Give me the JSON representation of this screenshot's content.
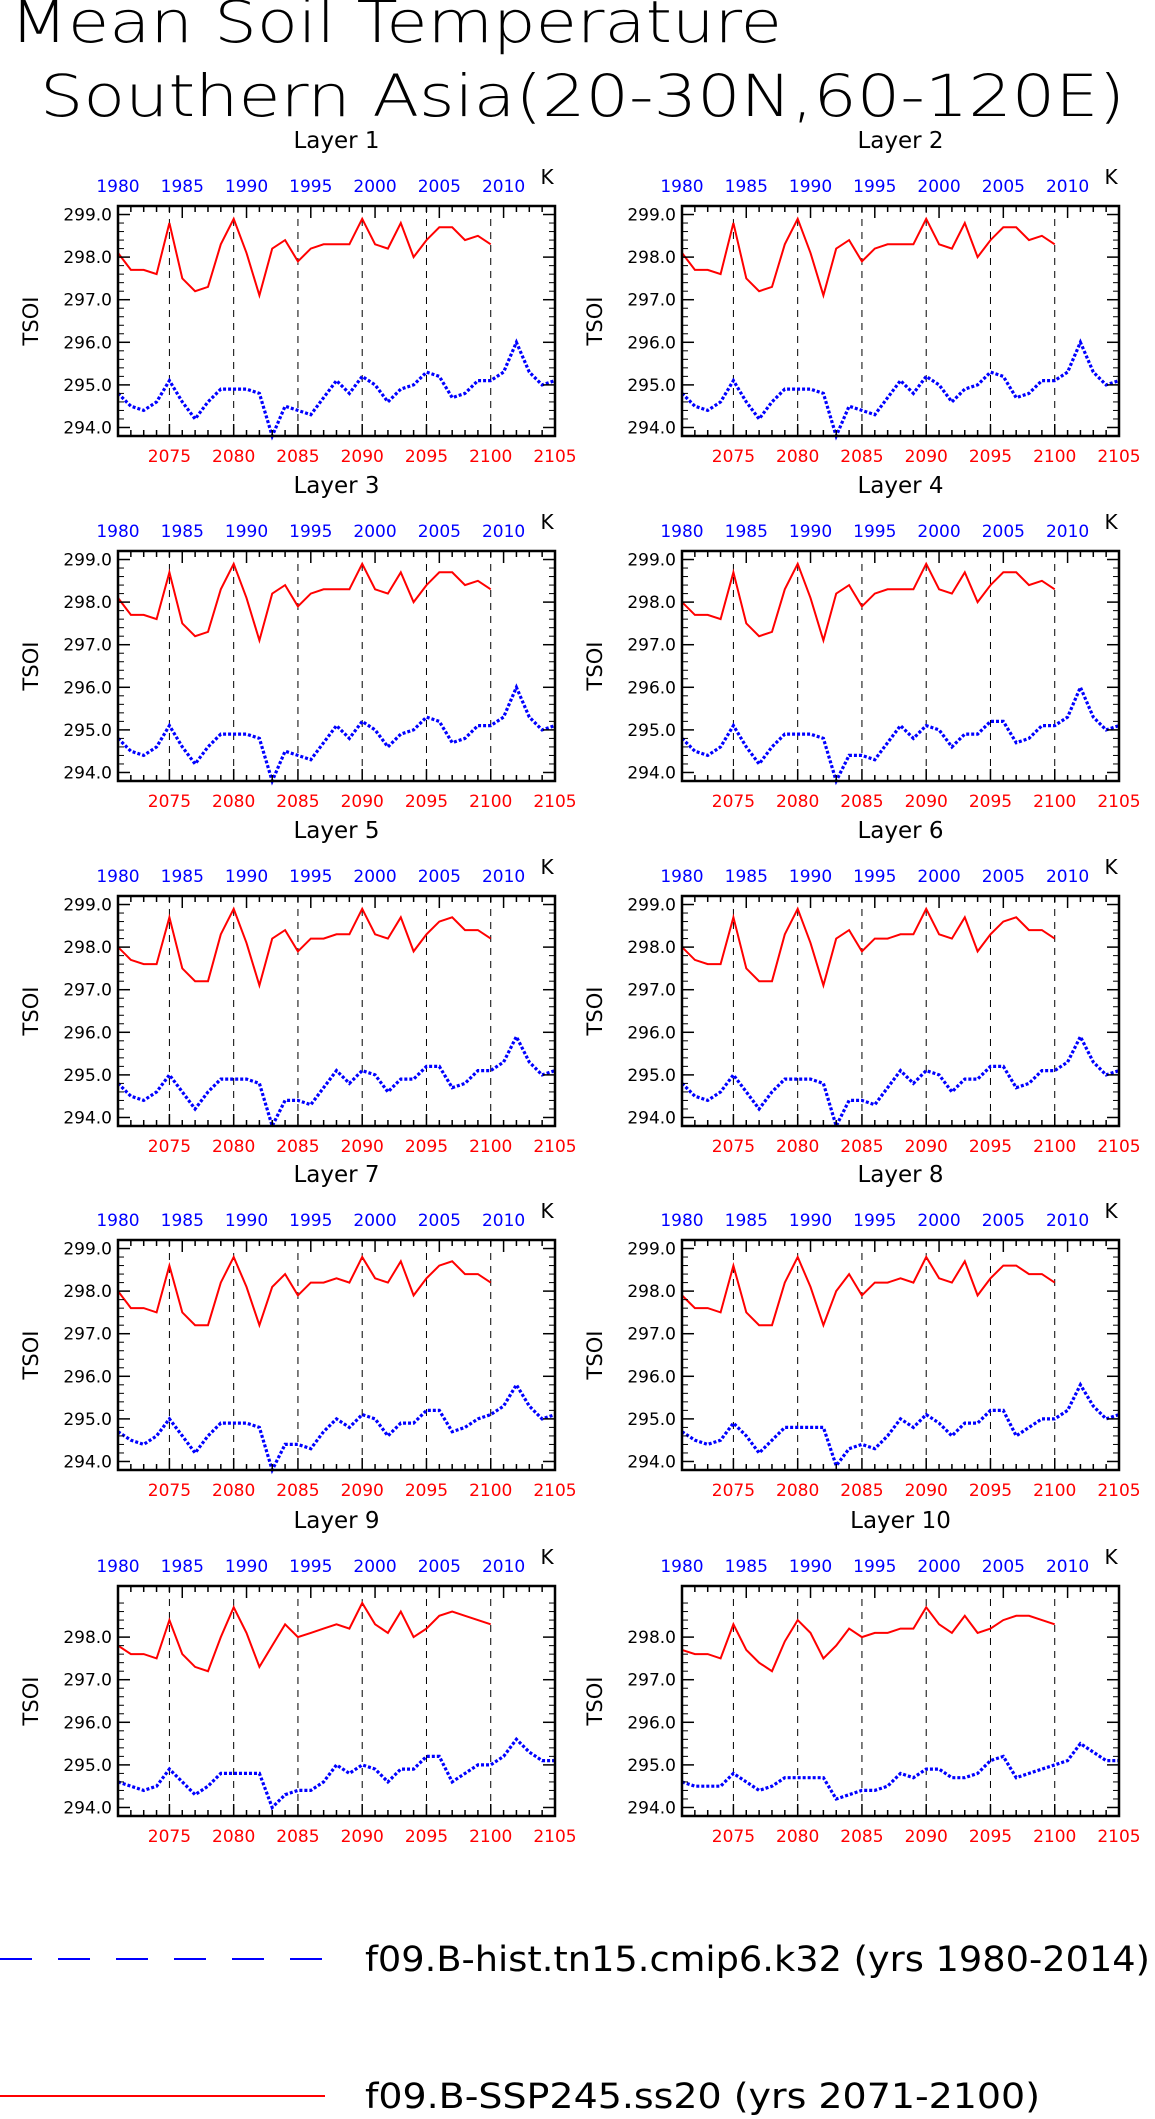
{
  "title_lines": [
    "Mean Soil Temperature",
    "Southern Asia(20-30N,60-120E)"
  ],
  "colors": {
    "hist": "#0000ff",
    "ssp": "#ff0000",
    "axis": "#000000"
  },
  "legend": [
    {
      "label": "f09.B-hist.tn15.cmip6.k32 (yrs 1980-2014)",
      "color": "#0000ff",
      "style": "long-dash"
    },
    {
      "label": "f09.B-SSP245.ss20 (yrs 2071-2100)",
      "color": "#ff0000",
      "style": "solid"
    }
  ],
  "chart_data": {
    "type": "line",
    "ylabel": "TSOI",
    "units": "K",
    "x_bottom": {
      "label": "",
      "ticks": [
        "2075",
        "2080",
        "2085",
        "2090",
        "2095",
        "2100",
        "2105"
      ],
      "range": [
        2071,
        2105
      ]
    },
    "x_top": {
      "label": "",
      "ticks": [
        "1980",
        "1985",
        "1990",
        "1995",
        "2000",
        "2005",
        "2010"
      ],
      "range": [
        1980,
        2014
      ]
    },
    "ylim": [
      293.8,
      299.2
    ],
    "yticks": [
      "294.0",
      "295.0",
      "296.0",
      "297.0",
      "298.0",
      "299.0"
    ],
    "yticks_last_two_layers": [
      "294.0",
      "295.0",
      "296.0",
      "297.0",
      "298.0"
    ],
    "dashed_vlines_at": [
      2075,
      2080,
      2085,
      2090,
      2095,
      2100
    ],
    "panels": [
      {
        "title": "Layer 1",
        "hist": [
          294.8,
          294.5,
          294.4,
          294.6,
          295.1,
          294.6,
          294.2,
          294.6,
          294.9,
          294.9,
          294.9,
          294.8,
          293.8,
          294.5,
          294.4,
          294.3,
          294.7,
          295.1,
          294.8,
          295.2,
          295.0,
          294.6,
          294.9,
          295.0,
          295.3,
          295.2,
          294.7,
          294.8,
          295.1,
          295.1,
          295.3,
          296.0,
          295.3,
          295.0,
          295.1
        ],
        "ssp": [
          298.1,
          297.7,
          297.7,
          297.6,
          298.8,
          297.5,
          297.2,
          297.3,
          298.3,
          298.9,
          298.1,
          297.1,
          298.2,
          298.4,
          297.9,
          298.2,
          298.3,
          298.3,
          298.3,
          298.9,
          298.3,
          298.2,
          298.8,
          298.0,
          298.4,
          298.7,
          298.7,
          298.4,
          298.5,
          298.3
        ]
      },
      {
        "title": "Layer 2",
        "hist": [
          294.8,
          294.5,
          294.4,
          294.6,
          295.1,
          294.6,
          294.2,
          294.6,
          294.9,
          294.9,
          294.9,
          294.8,
          293.8,
          294.5,
          294.4,
          294.3,
          294.7,
          295.1,
          294.8,
          295.2,
          295.0,
          294.6,
          294.9,
          295.0,
          295.3,
          295.2,
          294.7,
          294.8,
          295.1,
          295.1,
          295.3,
          296.0,
          295.3,
          295.0,
          295.1
        ],
        "ssp": [
          298.1,
          297.7,
          297.7,
          297.6,
          298.8,
          297.5,
          297.2,
          297.3,
          298.3,
          298.9,
          298.1,
          297.1,
          298.2,
          298.4,
          297.9,
          298.2,
          298.3,
          298.3,
          298.3,
          298.9,
          298.3,
          298.2,
          298.8,
          298.0,
          298.4,
          298.7,
          298.7,
          298.4,
          298.5,
          298.3
        ]
      },
      {
        "title": "Layer 3",
        "hist": [
          294.8,
          294.5,
          294.4,
          294.6,
          295.1,
          294.6,
          294.2,
          294.6,
          294.9,
          294.9,
          294.9,
          294.8,
          293.8,
          294.5,
          294.4,
          294.3,
          294.7,
          295.1,
          294.8,
          295.2,
          295.0,
          294.6,
          294.9,
          295.0,
          295.3,
          295.2,
          294.7,
          294.8,
          295.1,
          295.1,
          295.3,
          296.0,
          295.3,
          295.0,
          295.1
        ],
        "ssp": [
          298.1,
          297.7,
          297.7,
          297.6,
          298.7,
          297.5,
          297.2,
          297.3,
          298.3,
          298.9,
          298.1,
          297.1,
          298.2,
          298.4,
          297.9,
          298.2,
          298.3,
          298.3,
          298.3,
          298.9,
          298.3,
          298.2,
          298.7,
          298.0,
          298.4,
          298.7,
          298.7,
          298.4,
          298.5,
          298.3
        ]
      },
      {
        "title": "Layer 4",
        "hist": [
          294.8,
          294.5,
          294.4,
          294.6,
          295.1,
          294.6,
          294.2,
          294.6,
          294.9,
          294.9,
          294.9,
          294.8,
          293.8,
          294.4,
          294.4,
          294.3,
          294.7,
          295.1,
          294.8,
          295.1,
          295.0,
          294.6,
          294.9,
          294.9,
          295.2,
          295.2,
          294.7,
          294.8,
          295.1,
          295.1,
          295.3,
          296.0,
          295.3,
          295.0,
          295.1
        ],
        "ssp": [
          298.0,
          297.7,
          297.7,
          297.6,
          298.7,
          297.5,
          297.2,
          297.3,
          298.3,
          298.9,
          298.1,
          297.1,
          298.2,
          298.4,
          297.9,
          298.2,
          298.3,
          298.3,
          298.3,
          298.9,
          298.3,
          298.2,
          298.7,
          298.0,
          298.4,
          298.7,
          298.7,
          298.4,
          298.5,
          298.3
        ]
      },
      {
        "title": "Layer 5",
        "hist": [
          294.8,
          294.5,
          294.4,
          294.6,
          295.0,
          294.6,
          294.2,
          294.6,
          294.9,
          294.9,
          294.9,
          294.8,
          293.8,
          294.4,
          294.4,
          294.3,
          294.7,
          295.1,
          294.8,
          295.1,
          295.0,
          294.6,
          294.9,
          294.9,
          295.2,
          295.2,
          294.7,
          294.8,
          295.1,
          295.1,
          295.3,
          295.9,
          295.3,
          295.0,
          295.1
        ],
        "ssp": [
          298.0,
          297.7,
          297.6,
          297.6,
          298.7,
          297.5,
          297.2,
          297.2,
          298.3,
          298.9,
          298.1,
          297.1,
          298.2,
          298.4,
          297.9,
          298.2,
          298.2,
          298.3,
          298.3,
          298.9,
          298.3,
          298.2,
          298.7,
          297.9,
          298.3,
          298.6,
          298.7,
          298.4,
          298.4,
          298.2
        ]
      },
      {
        "title": "Layer 6",
        "hist": [
          294.8,
          294.5,
          294.4,
          294.6,
          295.0,
          294.6,
          294.2,
          294.6,
          294.9,
          294.9,
          294.9,
          294.8,
          293.8,
          294.4,
          294.4,
          294.3,
          294.7,
          295.1,
          294.8,
          295.1,
          295.0,
          294.6,
          294.9,
          294.9,
          295.2,
          295.2,
          294.7,
          294.8,
          295.1,
          295.1,
          295.3,
          295.9,
          295.3,
          295.0,
          295.1
        ],
        "ssp": [
          298.0,
          297.7,
          297.6,
          297.6,
          298.7,
          297.5,
          297.2,
          297.2,
          298.3,
          298.9,
          298.1,
          297.1,
          298.2,
          298.4,
          297.9,
          298.2,
          298.2,
          298.3,
          298.3,
          298.9,
          298.3,
          298.2,
          298.7,
          297.9,
          298.3,
          298.6,
          298.7,
          298.4,
          298.4,
          298.2
        ]
      },
      {
        "title": "Layer 7",
        "hist": [
          294.7,
          294.5,
          294.4,
          294.6,
          295.0,
          294.6,
          294.2,
          294.6,
          294.9,
          294.9,
          294.9,
          294.8,
          293.8,
          294.4,
          294.4,
          294.3,
          294.7,
          295.0,
          294.8,
          295.1,
          295.0,
          294.6,
          294.9,
          294.9,
          295.2,
          295.2,
          294.7,
          294.8,
          295.0,
          295.1,
          295.3,
          295.8,
          295.3,
          295.0,
          295.1
        ],
        "ssp": [
          298.0,
          297.6,
          297.6,
          297.5,
          298.6,
          297.5,
          297.2,
          297.2,
          298.2,
          298.8,
          298.1,
          297.2,
          298.1,
          298.4,
          297.9,
          298.2,
          298.2,
          298.3,
          298.2,
          298.8,
          298.3,
          298.2,
          298.7,
          297.9,
          298.3,
          298.6,
          298.7,
          298.4,
          298.4,
          298.2
        ]
      },
      {
        "title": "Layer 8",
        "hist": [
          294.7,
          294.5,
          294.4,
          294.5,
          294.9,
          294.6,
          294.2,
          294.5,
          294.8,
          294.8,
          294.8,
          294.8,
          293.9,
          294.3,
          294.4,
          294.3,
          294.6,
          295.0,
          294.8,
          295.1,
          294.9,
          294.6,
          294.9,
          294.9,
          295.2,
          295.2,
          294.6,
          294.8,
          295.0,
          295.0,
          295.2,
          295.8,
          295.3,
          295.0,
          295.1
        ],
        "ssp": [
          297.9,
          297.6,
          297.6,
          297.5,
          298.6,
          297.5,
          297.2,
          297.2,
          298.2,
          298.8,
          298.1,
          297.2,
          298.0,
          298.4,
          297.9,
          298.2,
          298.2,
          298.3,
          298.2,
          298.8,
          298.3,
          298.2,
          298.7,
          297.9,
          298.3,
          298.6,
          298.6,
          298.4,
          298.4,
          298.2
        ]
      },
      {
        "title": "Layer 9",
        "hist": [
          294.6,
          294.5,
          294.4,
          294.5,
          294.9,
          294.6,
          294.3,
          294.5,
          294.8,
          294.8,
          294.8,
          294.8,
          294.0,
          294.3,
          294.4,
          294.4,
          294.6,
          295.0,
          294.8,
          295.0,
          294.9,
          294.6,
          294.9,
          294.9,
          295.2,
          295.2,
          294.6,
          294.8,
          295.0,
          295.0,
          295.2,
          295.6,
          295.3,
          295.1,
          295.1
        ],
        "ssp": [
          297.8,
          297.6,
          297.6,
          297.5,
          298.4,
          297.6,
          297.3,
          297.2,
          298.0,
          298.7,
          298.1,
          297.3,
          297.8,
          298.3,
          298.0,
          298.1,
          298.2,
          298.3,
          298.2,
          298.8,
          298.3,
          298.1,
          298.6,
          298.0,
          298.2,
          298.5,
          298.6,
          298.5,
          298.4,
          298.3
        ]
      },
      {
        "title": "Layer 10",
        "hist": [
          294.6,
          294.5,
          294.5,
          294.5,
          294.8,
          294.6,
          294.4,
          294.5,
          294.7,
          294.7,
          294.7,
          294.7,
          294.2,
          294.3,
          294.4,
          294.4,
          294.5,
          294.8,
          294.7,
          294.9,
          294.9,
          294.7,
          294.7,
          294.8,
          295.1,
          295.2,
          294.7,
          294.8,
          294.9,
          295.0,
          295.1,
          295.5,
          295.3,
          295.1,
          295.1
        ],
        "ssp": [
          297.7,
          297.6,
          297.6,
          297.5,
          298.3,
          297.7,
          297.4,
          297.2,
          297.9,
          298.4,
          298.1,
          297.5,
          297.8,
          298.2,
          298.0,
          298.1,
          298.1,
          298.2,
          298.2,
          298.7,
          298.3,
          298.1,
          298.5,
          298.1,
          298.2,
          298.4,
          298.5,
          298.5,
          298.4,
          298.3
        ]
      }
    ]
  }
}
